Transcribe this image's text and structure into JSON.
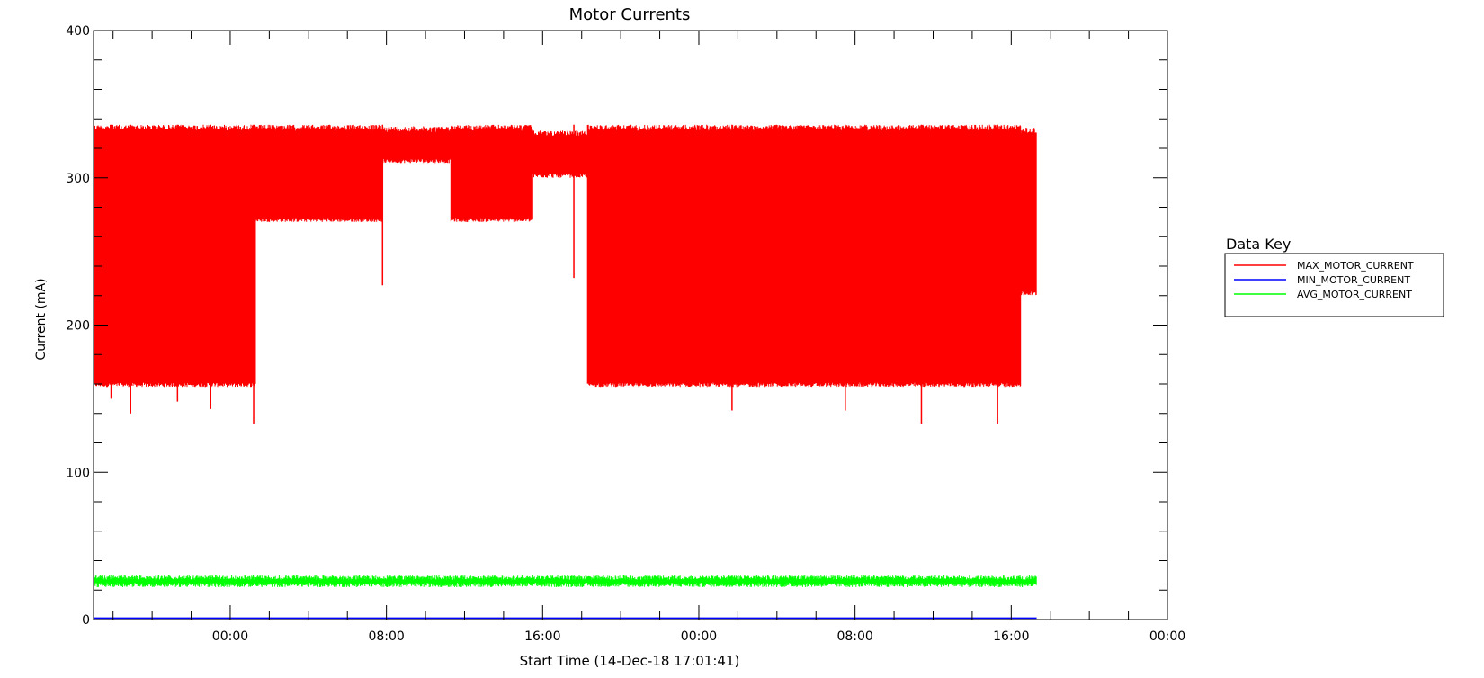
{
  "chart_data": {
    "type": "line",
    "title": "Motor Currents",
    "xlabel": "Start Time (14-Dec-18 17:01:41)",
    "ylabel": "Current (mA)",
    "xlim_hours": [
      0,
      55
    ],
    "ylim": [
      0,
      400
    ],
    "y_ticks": [
      0,
      100,
      200,
      300,
      400
    ],
    "y_tick_labels": [
      "0",
      "100",
      "200",
      "300",
      "400"
    ],
    "x_tick_hours": [
      7,
      15,
      23,
      31,
      39,
      47,
      55
    ],
    "x_tick_labels": [
      "00:00",
      "08:00",
      "16:00",
      "00:00",
      "08:00",
      "16:00",
      "00:00"
    ],
    "grid": false,
    "legend": {
      "title": "Data Key",
      "placement": "right"
    },
    "series": [
      {
        "name": "MAX_MOTOR_CURRENT",
        "color": "#ff0000",
        "segments": [
          {
            "x": [
              0.0,
              8.3
            ],
            "low": 158,
            "high": 336
          },
          {
            "x": [
              8.3,
              14.8
            ],
            "low": 270,
            "high": 336
          },
          {
            "x": [
              14.8,
              18.3
            ],
            "low": 310,
            "high": 335
          },
          {
            "x": [
              18.3,
              22.5
            ],
            "low": 270,
            "high": 336
          },
          {
            "x": [
              22.5,
              25.3
            ],
            "low": 300,
            "high": 332
          },
          {
            "x": [
              25.3,
              47.5
            ],
            "low": 158,
            "high": 336
          },
          {
            "x": [
              47.5,
              48.3
            ],
            "low": 220,
            "high": 334
          }
        ],
        "dips": [
          {
            "x": 0.9,
            "y": 150
          },
          {
            "x": 1.9,
            "y": 140
          },
          {
            "x": 4.3,
            "y": 148
          },
          {
            "x": 6.0,
            "y": 143
          },
          {
            "x": 8.2,
            "y": 133
          },
          {
            "x": 14.8,
            "y": 227
          },
          {
            "x": 24.6,
            "y": 232
          },
          {
            "x": 27.5,
            "y": 160
          },
          {
            "x": 32.7,
            "y": 142
          },
          {
            "x": 38.5,
            "y": 142
          },
          {
            "x": 42.4,
            "y": 133
          },
          {
            "x": 46.3,
            "y": 133
          }
        ]
      },
      {
        "name": "MIN_MOTOR_CURRENT",
        "color": "#0000ff",
        "mean": 1,
        "x": [
          0.0,
          48.3
        ]
      },
      {
        "name": "AVG_MOTOR_CURRENT",
        "color": "#00ff00",
        "mean": 26,
        "band": [
          22,
          30
        ],
        "x": [
          0.0,
          48.3
        ]
      }
    ]
  }
}
